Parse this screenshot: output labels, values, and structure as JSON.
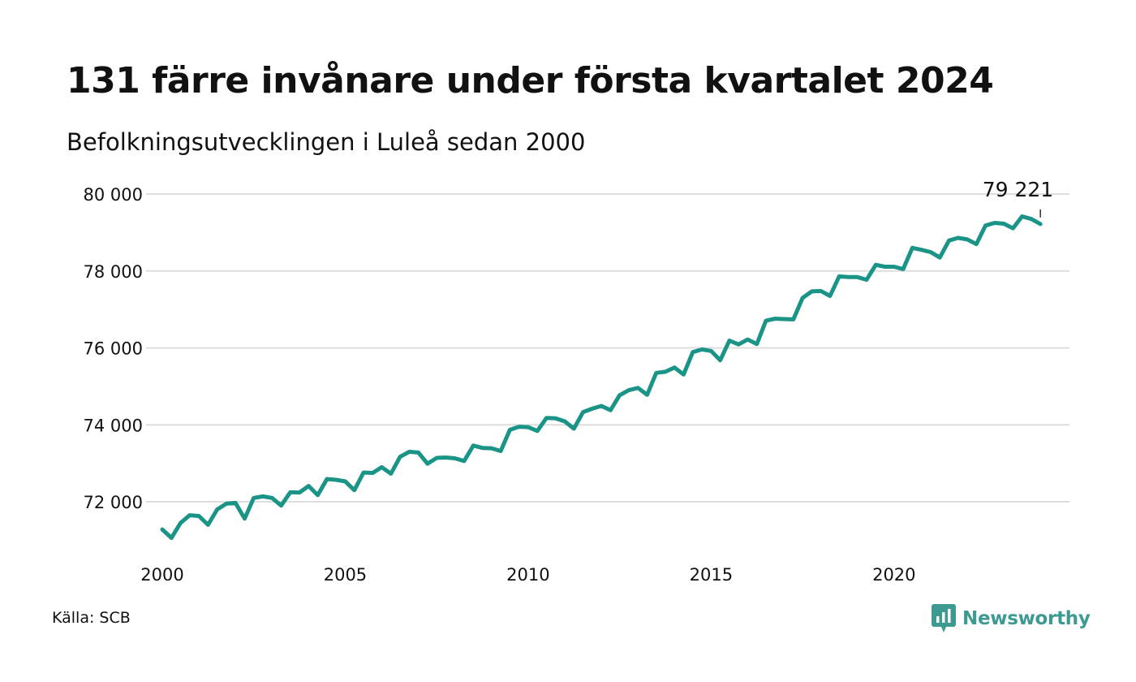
{
  "title": "131 färre invånare under första kvartalet 2024",
  "subtitle": "Befolkningsutvecklingen i Luleå sedan 2000",
  "source": "Källa: SCB",
  "logo": {
    "text": "Newsworthy",
    "icon": "newsworthy-chart-icon",
    "color": "#3d9a91"
  },
  "chart_data": {
    "type": "line",
    "title": "131 färre invånare under första kvartalet 2024",
    "subtitle": "Befolkningsutvecklingen i Luleå sedan 2000",
    "xlabel": "",
    "ylabel": "",
    "x_ticks": [
      2000,
      2005,
      2010,
      2015,
      2020
    ],
    "x_tick_labels": [
      "2000",
      "2005",
      "2010",
      "2015",
      "2020"
    ],
    "y_ticks": [
      72000,
      74000,
      76000,
      78000,
      80000
    ],
    "y_tick_labels": [
      "72 000",
      "74 000",
      "76 000",
      "78 000",
      "80 000"
    ],
    "grid": "horizontal",
    "line_color": "#1a9487",
    "last_label": "79 221",
    "series": [
      {
        "x": [
          "2000Q1",
          "2000Q2",
          "2000Q3",
          "2000Q4",
          "2001Q1",
          "2001Q2",
          "2001Q3",
          "2001Q4",
          "2002Q1",
          "2002Q2",
          "2002Q3",
          "2002Q4",
          "2003Q1",
          "2003Q2",
          "2003Q3",
          "2003Q4",
          "2004Q1",
          "2004Q2",
          "2004Q3",
          "2004Q4",
          "2005Q1",
          "2005Q2",
          "2005Q3",
          "2005Q4",
          "2006Q1",
          "2006Q2",
          "2006Q3",
          "2006Q4",
          "2007Q1",
          "2007Q2",
          "2007Q3",
          "2007Q4",
          "2008Q1",
          "2008Q2",
          "2008Q3",
          "2008Q4",
          "2009Q1",
          "2009Q2",
          "2009Q3",
          "2009Q4",
          "2010Q1",
          "2010Q2",
          "2010Q3",
          "2010Q4",
          "2011Q1",
          "2011Q2",
          "2011Q3",
          "2011Q4",
          "2012Q1",
          "2012Q2",
          "2012Q3",
          "2012Q4",
          "2013Q1",
          "2013Q2",
          "2013Q3",
          "2013Q4",
          "2014Q1",
          "2014Q2",
          "2014Q3",
          "2014Q4",
          "2015Q1",
          "2015Q2",
          "2015Q3",
          "2015Q4",
          "2016Q1",
          "2016Q2",
          "2016Q3",
          "2016Q4",
          "2017Q1",
          "2017Q2",
          "2017Q3",
          "2017Q4",
          "2018Q1",
          "2018Q2",
          "2018Q3",
          "2018Q4",
          "2019Q1",
          "2019Q2",
          "2019Q3",
          "2019Q4",
          "2020Q1",
          "2020Q2",
          "2020Q3",
          "2020Q4",
          "2021Q1",
          "2021Q2",
          "2021Q3",
          "2021Q4",
          "2022Q1",
          "2022Q2",
          "2022Q3",
          "2022Q4",
          "2023Q1",
          "2023Q2",
          "2023Q3",
          "2023Q4",
          "2024Q1"
        ],
        "values": [
          71280,
          71060,
          71450,
          71650,
          71630,
          71400,
          71800,
          71950,
          71970,
          71560,
          72100,
          72140,
          72100,
          71900,
          72250,
          72240,
          72410,
          72170,
          72590,
          72570,
          72530,
          72300,
          72760,
          72750,
          72900,
          72730,
          73170,
          73300,
          73280,
          72990,
          73140,
          73150,
          73130,
          73060,
          73460,
          73400,
          73390,
          73320,
          73870,
          73950,
          73940,
          73840,
          74180,
          74170,
          74090,
          73900,
          74330,
          74420,
          74490,
          74380,
          74770,
          74900,
          74960,
          74780,
          75350,
          75380,
          75490,
          75310,
          75890,
          75960,
          75920,
          75680,
          76190,
          76090,
          76220,
          76100,
          76710,
          76760,
          76750,
          76740,
          77300,
          77470,
          77480,
          77350,
          77860,
          77840,
          77840,
          77770,
          78160,
          78110,
          78110,
          78050,
          78600,
          78550,
          78490,
          78350,
          78790,
          78860,
          78820,
          78700,
          79180,
          79250,
          79230,
          79110,
          79420,
          79352,
          79221
        ]
      }
    ]
  }
}
